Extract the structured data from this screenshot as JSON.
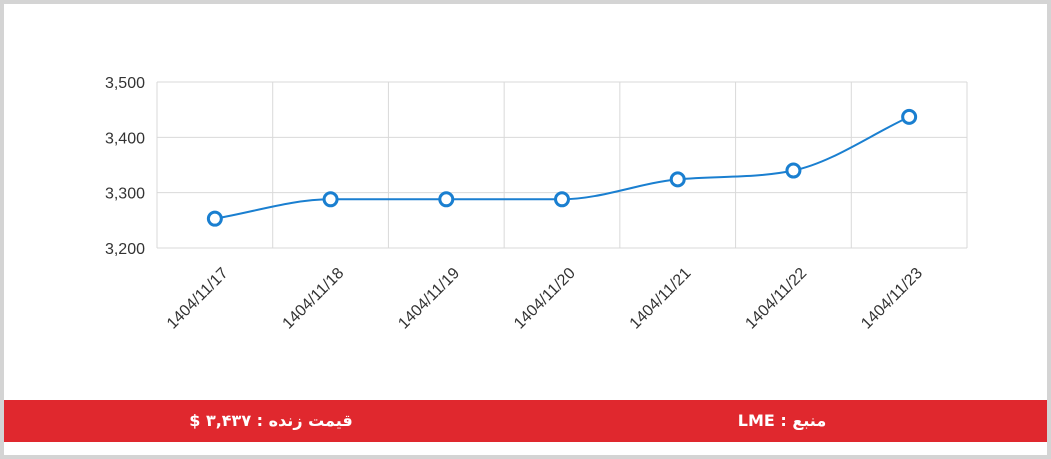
{
  "chart_data": {
    "type": "line",
    "categories": [
      "1404/11/17",
      "1404/11/18",
      "1404/11/19",
      "1404/11/20",
      "1404/11/21",
      "1404/11/22",
      "1404/11/23"
    ],
    "series": [
      {
        "name": "LME",
        "color": "#1a7fd0",
        "values": [
          3253,
          3288,
          3288,
          3288,
          3324,
          3340,
          3437
        ]
      }
    ],
    "ylim": [
      3200,
      3500
    ],
    "yticks": [
      {
        "value": 3200,
        "label": "3,200"
      },
      {
        "value": 3300,
        "label": "3,300"
      },
      {
        "value": 3400,
        "label": "3,400"
      },
      {
        "value": 3500,
        "label": "3,500"
      }
    ],
    "grid": true
  },
  "footer": {
    "price": "قیمت زنده : ۳,۴۳۷ $",
    "source": "منبع : LME"
  }
}
